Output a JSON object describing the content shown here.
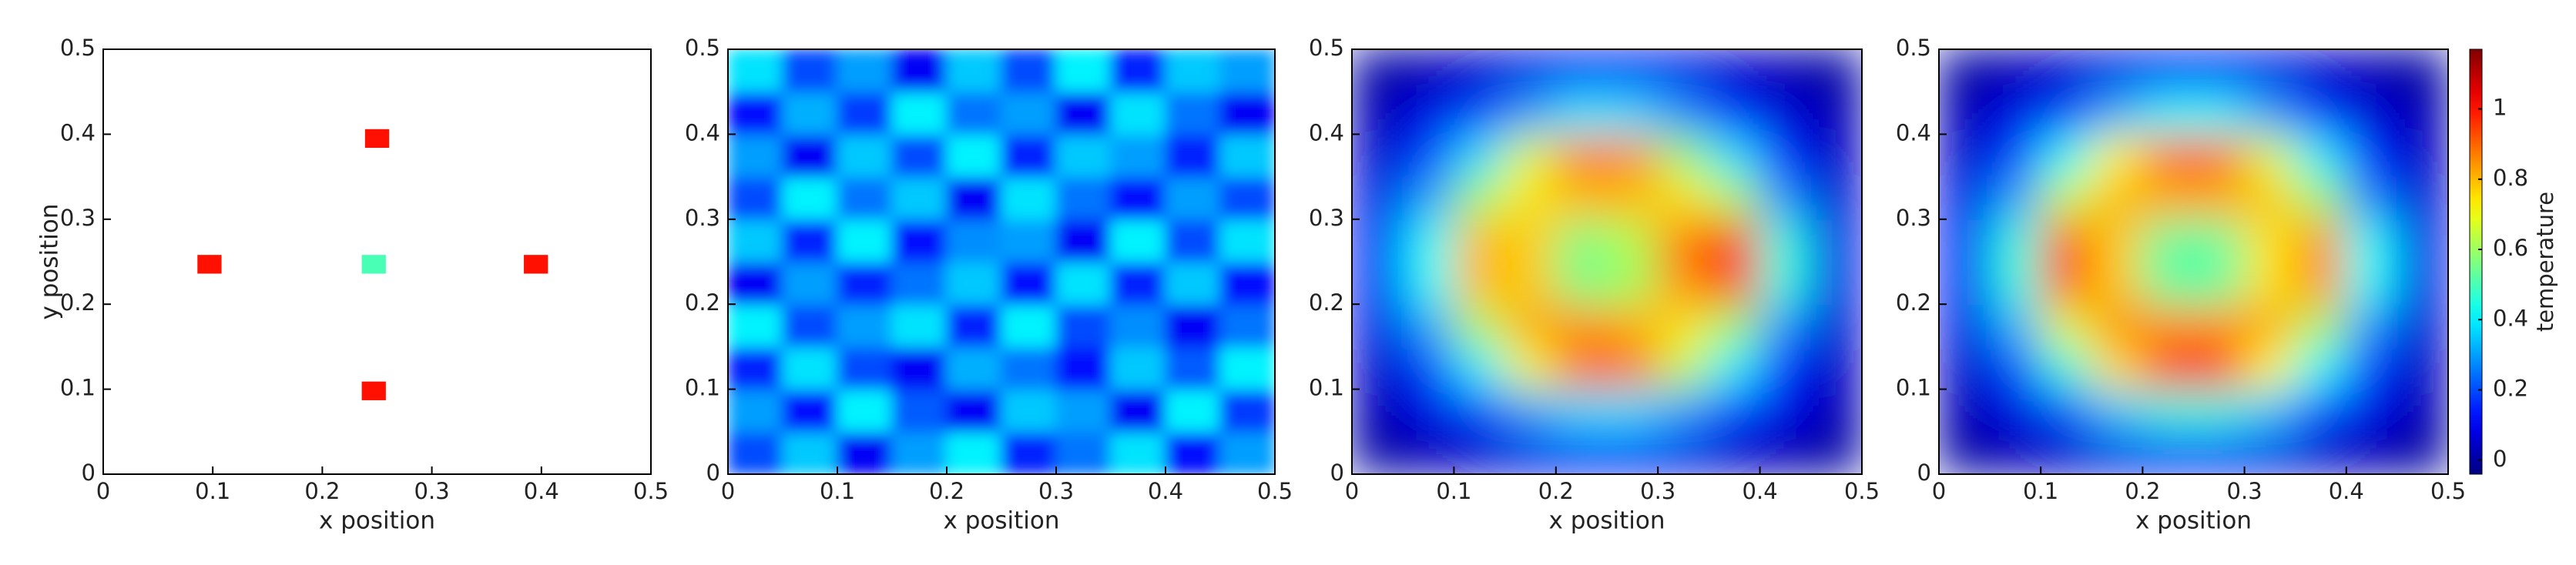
{
  "chart_data": [
    {
      "type": "sources",
      "xlabel": "x position",
      "ylabel": "y position",
      "xlim": [
        0,
        0.5
      ],
      "ylim": [
        0,
        0.5
      ],
      "xticks": [
        0,
        0.1,
        0.2,
        0.3,
        0.4,
        0.5
      ],
      "yticks": [
        0,
        0.1,
        0.2,
        0.3,
        0.4,
        0.5
      ],
      "clim": [
        -0.04,
        1.17
      ],
      "size": 0.022,
      "sources": [
        {
          "x": 0.25,
          "y": 0.395,
          "value": 1
        },
        {
          "x": 0.097,
          "y": 0.247,
          "value": 1
        },
        {
          "x": 0.247,
          "y": 0.247,
          "value": 0.5
        },
        {
          "x": 0.395,
          "y": 0.247,
          "value": 1
        },
        {
          "x": 0.247,
          "y": 0.098,
          "value": 1
        }
      ]
    },
    {
      "type": "heatmap",
      "xlabel": "x position",
      "xlim": [
        0,
        0.5
      ],
      "ylim": [
        0,
        0.5
      ],
      "xticks": [
        0,
        0.1,
        0.2,
        0.3,
        0.4,
        0.5
      ],
      "yticks": [
        0,
        0.1,
        0.2,
        0.3,
        0.4,
        0.5
      ],
      "clim": [
        -0.04,
        1.17
      ],
      "smooth": 10,
      "x": [
        0.025,
        0.075,
        0.125,
        0.175,
        0.225,
        0.275,
        0.325,
        0.375,
        0.425,
        0.475
      ],
      "y": [
        0.025,
        0.075,
        0.125,
        0.175,
        0.225,
        0.275,
        0.325,
        0.375,
        0.425,
        0.475
      ],
      "z": [
        [
          0.2,
          0.35,
          0.1,
          0.3,
          0.4,
          0.15,
          0.25,
          0.38,
          0.12,
          0.3
        ],
        [
          0.3,
          0.12,
          0.4,
          0.22,
          0.1,
          0.35,
          0.3,
          0.1,
          0.4,
          0.18
        ],
        [
          0.15,
          0.38,
          0.2,
          0.1,
          0.32,
          0.25,
          0.12,
          0.35,
          0.22,
          0.4
        ],
        [
          0.4,
          0.2,
          0.3,
          0.38,
          0.15,
          0.4,
          0.2,
          0.28,
          0.1,
          0.25
        ],
        [
          0.1,
          0.3,
          0.15,
          0.25,
          0.35,
          0.12,
          0.38,
          0.15,
          0.35,
          0.12
        ],
        [
          0.35,
          0.15,
          0.4,
          0.12,
          0.28,
          0.3,
          0.1,
          0.4,
          0.2,
          0.38
        ],
        [
          0.2,
          0.4,
          0.25,
          0.35,
          0.1,
          0.38,
          0.25,
          0.12,
          0.3,
          0.2
        ],
        [
          0.3,
          0.1,
          0.35,
          0.2,
          0.4,
          0.15,
          0.35,
          0.3,
          0.15,
          0.35
        ],
        [
          0.12,
          0.32,
          0.18,
          0.4,
          0.25,
          0.3,
          0.1,
          0.38,
          0.25,
          0.1
        ],
        [
          0.38,
          0.2,
          0.3,
          0.1,
          0.35,
          0.2,
          0.4,
          0.15,
          0.35,
          0.3
        ]
      ]
    },
    {
      "type": "heatmap",
      "xlabel": "x position",
      "xlim": [
        0,
        0.5
      ],
      "ylim": [
        0,
        0.5
      ],
      "xticks": [
        0,
        0.1,
        0.2,
        0.3,
        0.4,
        0.5
      ],
      "yticks": [
        0,
        0.1,
        0.2,
        0.3,
        0.4,
        0.5
      ],
      "clim": [
        -0.04,
        1.17
      ],
      "smooth": 30,
      "x": [
        0.025,
        0.075,
        0.125,
        0.175,
        0.225,
        0.275,
        0.325,
        0.375,
        0.425,
        0.475
      ],
      "y": [
        0.025,
        0.075,
        0.125,
        0.175,
        0.225,
        0.275,
        0.325,
        0.375,
        0.425,
        0.475
      ],
      "z": [
        [
          0,
          0.02,
          0.05,
          0.08,
          0.1,
          0.1,
          0.08,
          0.05,
          0.02,
          0
        ],
        [
          0.02,
          0.08,
          0.18,
          0.3,
          0.38,
          0.38,
          0.3,
          0.18,
          0.08,
          0.02
        ],
        [
          0.05,
          0.18,
          0.4,
          0.7,
          0.9,
          0.88,
          0.65,
          0.4,
          0.15,
          0.04
        ],
        [
          0.08,
          0.3,
          0.62,
          0.82,
          0.85,
          0.82,
          0.75,
          0.6,
          0.28,
          0.06
        ],
        [
          0.1,
          0.42,
          0.8,
          0.78,
          0.55,
          0.6,
          0.85,
          0.95,
          0.45,
          0.08
        ],
        [
          0.1,
          0.42,
          0.8,
          0.78,
          0.55,
          0.62,
          0.88,
          0.98,
          0.45,
          0.08
        ],
        [
          0.08,
          0.3,
          0.6,
          0.75,
          0.8,
          0.8,
          0.75,
          0.62,
          0.28,
          0.06
        ],
        [
          0.05,
          0.18,
          0.38,
          0.68,
          0.88,
          0.85,
          0.6,
          0.38,
          0.15,
          0.04
        ],
        [
          0.02,
          0.08,
          0.18,
          0.3,
          0.4,
          0.38,
          0.28,
          0.15,
          0.06,
          0.02
        ],
        [
          0,
          0.02,
          0.05,
          0.08,
          0.1,
          0.1,
          0.08,
          0.05,
          0.02,
          0
        ]
      ]
    },
    {
      "type": "heatmap",
      "xlabel": "x position",
      "xlim": [
        0,
        0.5
      ],
      "ylim": [
        0,
        0.5
      ],
      "xticks": [
        0,
        0.1,
        0.2,
        0.3,
        0.4,
        0.5
      ],
      "yticks": [
        0,
        0.1,
        0.2,
        0.3,
        0.4,
        0.5
      ],
      "clim": [
        -0.04,
        1.17
      ],
      "smooth": 30,
      "colorbar_label": "temperature",
      "cticks": [
        0,
        0.2,
        0.4,
        0.6,
        0.8,
        1
      ],
      "x": [
        0.025,
        0.075,
        0.125,
        0.175,
        0.225,
        0.275,
        0.325,
        0.375,
        0.425,
        0.475
      ],
      "y": [
        0.025,
        0.075,
        0.125,
        0.175,
        0.225,
        0.275,
        0.325,
        0.375,
        0.425,
        0.475
      ],
      "z": [
        [
          0,
          0.02,
          0.05,
          0.08,
          0.1,
          0.1,
          0.08,
          0.05,
          0.02,
          0
        ],
        [
          0.02,
          0.08,
          0.2,
          0.35,
          0.45,
          0.45,
          0.35,
          0.2,
          0.08,
          0.02
        ],
        [
          0.05,
          0.2,
          0.45,
          0.75,
          0.98,
          0.98,
          0.72,
          0.42,
          0.18,
          0.04
        ],
        [
          0.08,
          0.32,
          0.68,
          0.85,
          0.85,
          0.85,
          0.82,
          0.62,
          0.28,
          0.06
        ],
        [
          0.1,
          0.45,
          0.92,
          0.78,
          0.52,
          0.52,
          0.75,
          0.85,
          0.42,
          0.08
        ],
        [
          0.1,
          0.45,
          0.92,
          0.78,
          0.52,
          0.52,
          0.75,
          0.85,
          0.42,
          0.08
        ],
        [
          0.08,
          0.3,
          0.65,
          0.8,
          0.82,
          0.82,
          0.78,
          0.6,
          0.26,
          0.06
        ],
        [
          0.05,
          0.18,
          0.42,
          0.72,
          0.9,
          0.9,
          0.68,
          0.4,
          0.15,
          0.04
        ],
        [
          0.02,
          0.08,
          0.18,
          0.32,
          0.42,
          0.42,
          0.3,
          0.16,
          0.06,
          0.02
        ],
        [
          0,
          0.02,
          0.05,
          0.08,
          0.1,
          0.1,
          0.08,
          0.05,
          0.02,
          0
        ]
      ]
    }
  ]
}
